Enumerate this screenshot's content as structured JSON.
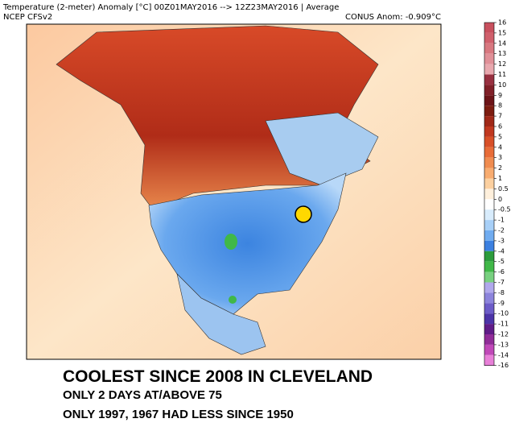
{
  "header": {
    "title": "Temperature (2-meter) Anomaly  [°C] 00Z01MAY2016 --> 12Z23MAY2016 | Average",
    "source": "NCEP  CFSv2",
    "anomaly": "CONUS Anom: -0.909°C"
  },
  "colorbar": {
    "levels": [
      16,
      15,
      14,
      13,
      12,
      11,
      10,
      9,
      8,
      7,
      6,
      5,
      4,
      3,
      2,
      1,
      0.5,
      0,
      -0.5,
      -1,
      -2,
      -3,
      -4,
      -5,
      -6,
      -7,
      -8,
      -9,
      -10,
      -11,
      -12,
      -13,
      -14,
      -16
    ],
    "colors": [
      "#c8505e",
      "#d0606c",
      "#d87880",
      "#e09098",
      "#e8a8ae",
      "#983040",
      "#802028",
      "#6c1418",
      "#7c1c10",
      "#a02818",
      "#c03820",
      "#d85028",
      "#e86c38",
      "#f08c50",
      "#f8ac70",
      "#fcd0a0",
      "#fff0dc",
      "#ffffff",
      "#d8ecfc",
      "#a8d0f8",
      "#70acf0",
      "#3c80e0",
      "#2c9c3c",
      "#40b848",
      "#78d080",
      "#b0a8ec",
      "#8c84dc",
      "#6c5cc8",
      "#4c34a8",
      "#601c88",
      "#902c98",
      "#c048b8",
      "#e880d8"
    ]
  },
  "caption": {
    "line1": "COOLEST SINCE 2008 IN CLEVELAND",
    "line2": "ONLY 2 DAYS AT/ABOVE 75",
    "line3": "ONLY 1997, 1967 HAD LESS SINCE 1950"
  }
}
